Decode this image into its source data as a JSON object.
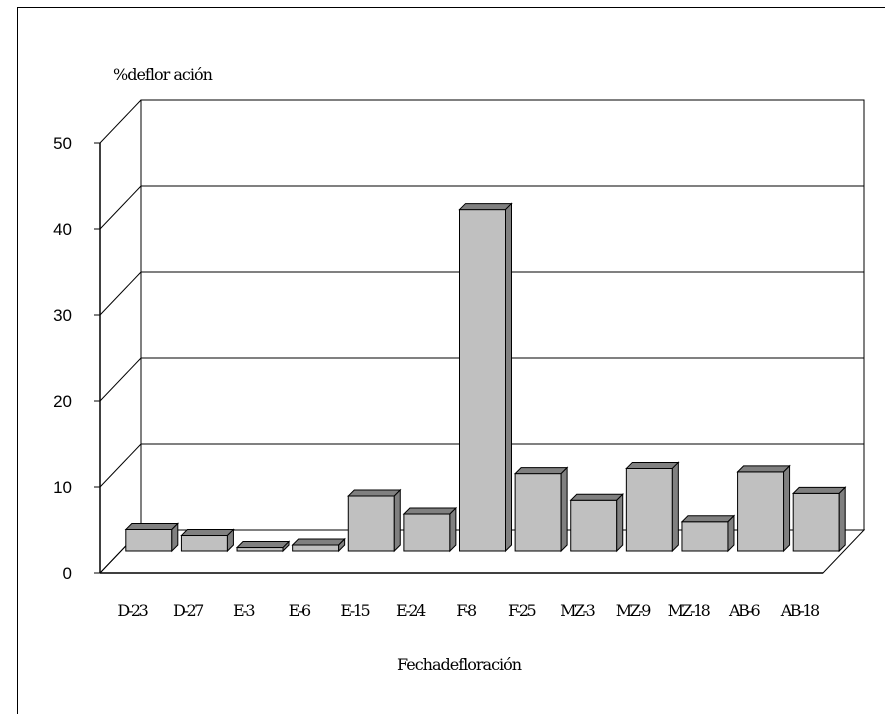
{
  "chart_data": {
    "type": "bar",
    "ylabel": "%deflor ación",
    "xlabel": "Fechadefloración",
    "categories": [
      "D-23",
      "D-27",
      "E-3",
      "E-6",
      "E-15",
      "E-24",
      "F-8",
      "F-25",
      "MZ-3",
      "MZ-9",
      "MZ-18",
      "AB-6",
      "AB-18"
    ],
    "values": [
      2.5,
      1.8,
      0.4,
      0.7,
      6.4,
      4.3,
      39.7,
      9.0,
      5.9,
      9.6,
      3.4,
      9.2,
      6.7
    ],
    "ylim": [
      0,
      50
    ],
    "yticks": [
      "0",
      "10",
      "20",
      "30",
      "40",
      "50"
    ],
    "grid": true,
    "three_d": true,
    "colors": {
      "bar_front": "#c0c0c0",
      "bar_top": "#808080",
      "bar_side": "#808080",
      "background": "#ffffff"
    }
  }
}
